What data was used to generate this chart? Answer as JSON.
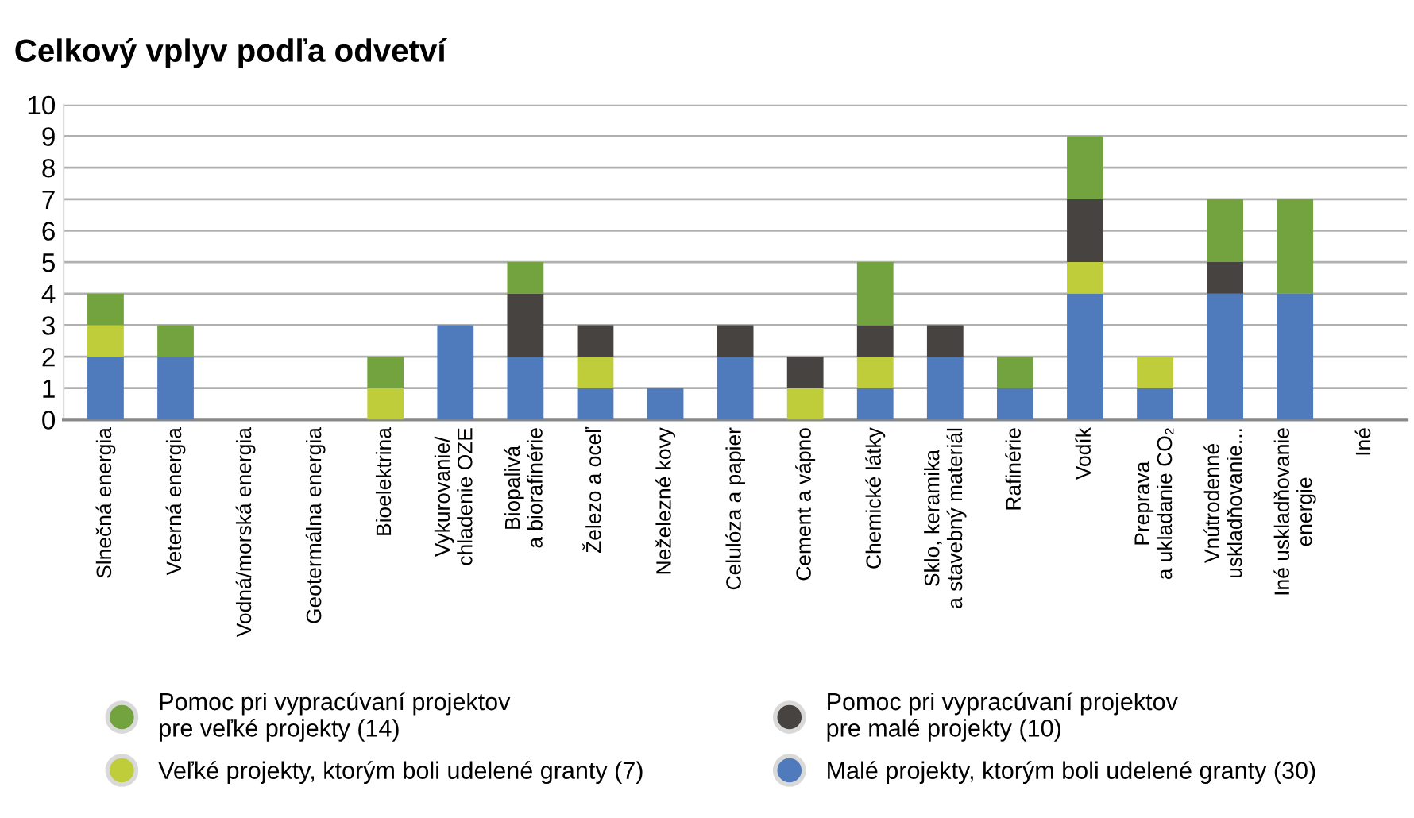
{
  "chart_data": {
    "type": "bar",
    "stacked": true,
    "title": "Celkový vplyv podľa odvetví",
    "categories": [
      "Slnečná energia",
      "Veterná energia",
      "Vodná/morská energia",
      "Geotermálna energia",
      "Bioelektrina",
      "Vykurovanie/\nchladenie OZE",
      "Biopalivá\na biorafinérie",
      "Železo a oceľ",
      "Neželezné kovy",
      "Celulóza a papier",
      "Cement a vápno",
      "Chemické látky",
      "Sklo, keramika\na stavebný materiál",
      "Rafinérie",
      "Vodík",
      "Preprava\na ukladanie CO₂",
      "Vnútrodenné\nuskladňovanie...",
      "Iné uskladňovanie\nenergie",
      "Iné"
    ],
    "series": [
      {
        "name": "Malé projekty, ktorým boli udelené granty (30)",
        "color": "#4f7bbd",
        "values": [
          2,
          2,
          0,
          0,
          0,
          3,
          2,
          1,
          1,
          2,
          0,
          1,
          2,
          1,
          4,
          1,
          4,
          4,
          0
        ]
      },
      {
        "name": "Veľké projekty, ktorým boli udelené granty (7)",
        "color": "#bfcd3a",
        "values": [
          1,
          0,
          0,
          0,
          1,
          0,
          0,
          1,
          0,
          0,
          1,
          1,
          0,
          0,
          1,
          1,
          0,
          0,
          0
        ]
      },
      {
        "name": "Pomoc pri vypracúvaní projektov\npre malé projekty (10)",
        "color": "#474340",
        "values": [
          0,
          0,
          0,
          0,
          0,
          0,
          2,
          1,
          0,
          1,
          1,
          1,
          1,
          0,
          2,
          0,
          1,
          0,
          0
        ]
      },
      {
        "name": "Pomoc pri vypracúvaní projektov\npre veľké projekty (14)",
        "color": "#72a33e",
        "values": [
          1,
          1,
          0,
          0,
          1,
          0,
          1,
          0,
          0,
          0,
          0,
          2,
          0,
          1,
          2,
          0,
          2,
          3,
          0
        ]
      }
    ],
    "ylim": [
      0,
      10
    ],
    "yticks": [
      0,
      1,
      2,
      3,
      4,
      5,
      6,
      7,
      8,
      9,
      10
    ],
    "grid": "y",
    "legend": "bottom"
  }
}
